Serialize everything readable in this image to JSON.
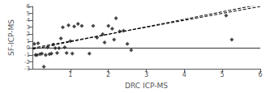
{
  "chart_data": {
    "type": "scatter",
    "xlabel": "DRC ICP-MS",
    "ylabel": "SF-ICP-MS",
    "xlim": [
      0,
      6
    ],
    "ylim": [
      -3,
      6
    ],
    "xticks": [
      1,
      2,
      3,
      4,
      5,
      6
    ],
    "yticks": [
      -3,
      -2,
      -1,
      0,
      1,
      2,
      3,
      4,
      5,
      6
    ],
    "grid": false,
    "color": "#1a1a1a",
    "marker": "diamond",
    "x": [
      0.05,
      0.08,
      0.12,
      0.15,
      0.2,
      0.25,
      0.3,
      0.35,
      0.4,
      0.45,
      0.5,
      0.55,
      0.6,
      0.65,
      0.7,
      0.75,
      0.8,
      0.85,
      0.9,
      0.95,
      1.0,
      1.05,
      1.1,
      1.2,
      1.3,
      1.5,
      1.6,
      1.7,
      1.85,
      1.9,
      2.0,
      2.1,
      2.15,
      2.2,
      2.3,
      2.4,
      2.5,
      2.6,
      5.1,
      5.25
    ],
    "values": [
      0.6,
      -1.0,
      -1.0,
      0.7,
      -0.9,
      -0.8,
      -2.7,
      -1.0,
      0.1,
      -0.9,
      -0.8,
      0.5,
      0.0,
      -0.7,
      0.0,
      1.4,
      3.0,
      0.1,
      -0.7,
      3.3,
      1.0,
      -0.8,
      3.1,
      3.5,
      3.2,
      -0.8,
      3.2,
      1.5,
      2.0,
      0.8,
      3.2,
      2.8,
      1.2,
      4.3,
      2.4,
      2.5,
      0.6,
      -0.3,
      4.7,
      1.2
    ],
    "lines": [
      {
        "type": "line",
        "x": [
          0,
          6
        ],
        "values": [
          -0.1803,
          6.3177
        ],
        "color": "#000000",
        "line_style": "dashed"
      },
      {
        "type": "line",
        "x": [
          0,
          6
        ],
        "values": [
          0,
          6
        ],
        "color": "#000000",
        "line_style": "dashed"
      }
    ],
    "reference_lines": [
      {
        "y": 0,
        "color": "#000000"
      }
    ]
  }
}
